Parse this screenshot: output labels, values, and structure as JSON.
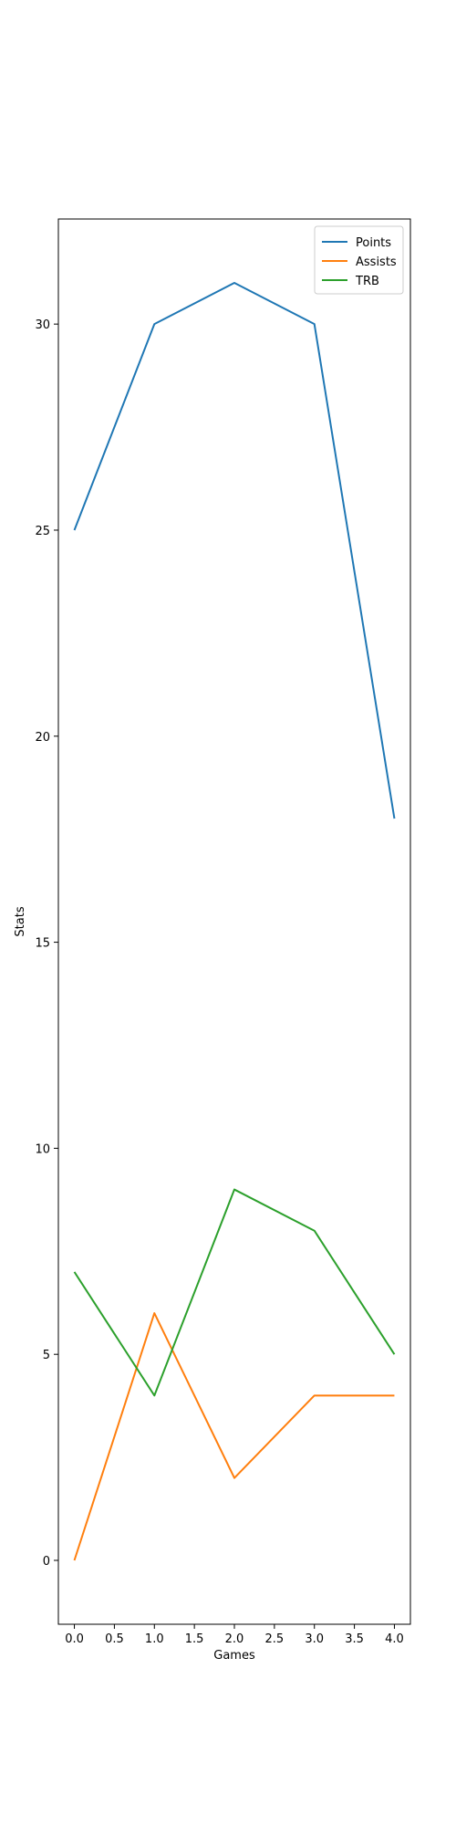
{
  "chart_data": {
    "type": "line",
    "title": "",
    "xlabel": "Games",
    "ylabel": "Stats",
    "x": [
      0,
      1,
      2,
      3,
      4
    ],
    "xlim": [
      -0.2,
      4.2
    ],
    "ylim": [
      -1.55,
      32.55
    ],
    "xticks": [
      0.0,
      0.5,
      1.0,
      1.5,
      2.0,
      2.5,
      3.0,
      3.5,
      4.0
    ],
    "xtick_labels": [
      "0.0",
      "0.5",
      "1.0",
      "1.5",
      "2.0",
      "2.5",
      "3.0",
      "3.5",
      "4.0"
    ],
    "yticks": [
      0,
      5,
      10,
      15,
      20,
      25,
      30
    ],
    "ytick_labels": [
      "0",
      "5",
      "10",
      "15",
      "20",
      "25",
      "30"
    ],
    "grid": false,
    "legend_position": "top-right",
    "series": [
      {
        "name": "Points",
        "color": "#1f77b4",
        "values": [
          25,
          30,
          31,
          30,
          18
        ]
      },
      {
        "name": "Assists",
        "color": "#ff7f0e",
        "values": [
          0,
          6,
          2,
          4,
          4
        ]
      },
      {
        "name": "TRB",
        "color": "#2ca02c",
        "values": [
          7,
          4,
          9,
          8,
          5
        ]
      }
    ]
  }
}
